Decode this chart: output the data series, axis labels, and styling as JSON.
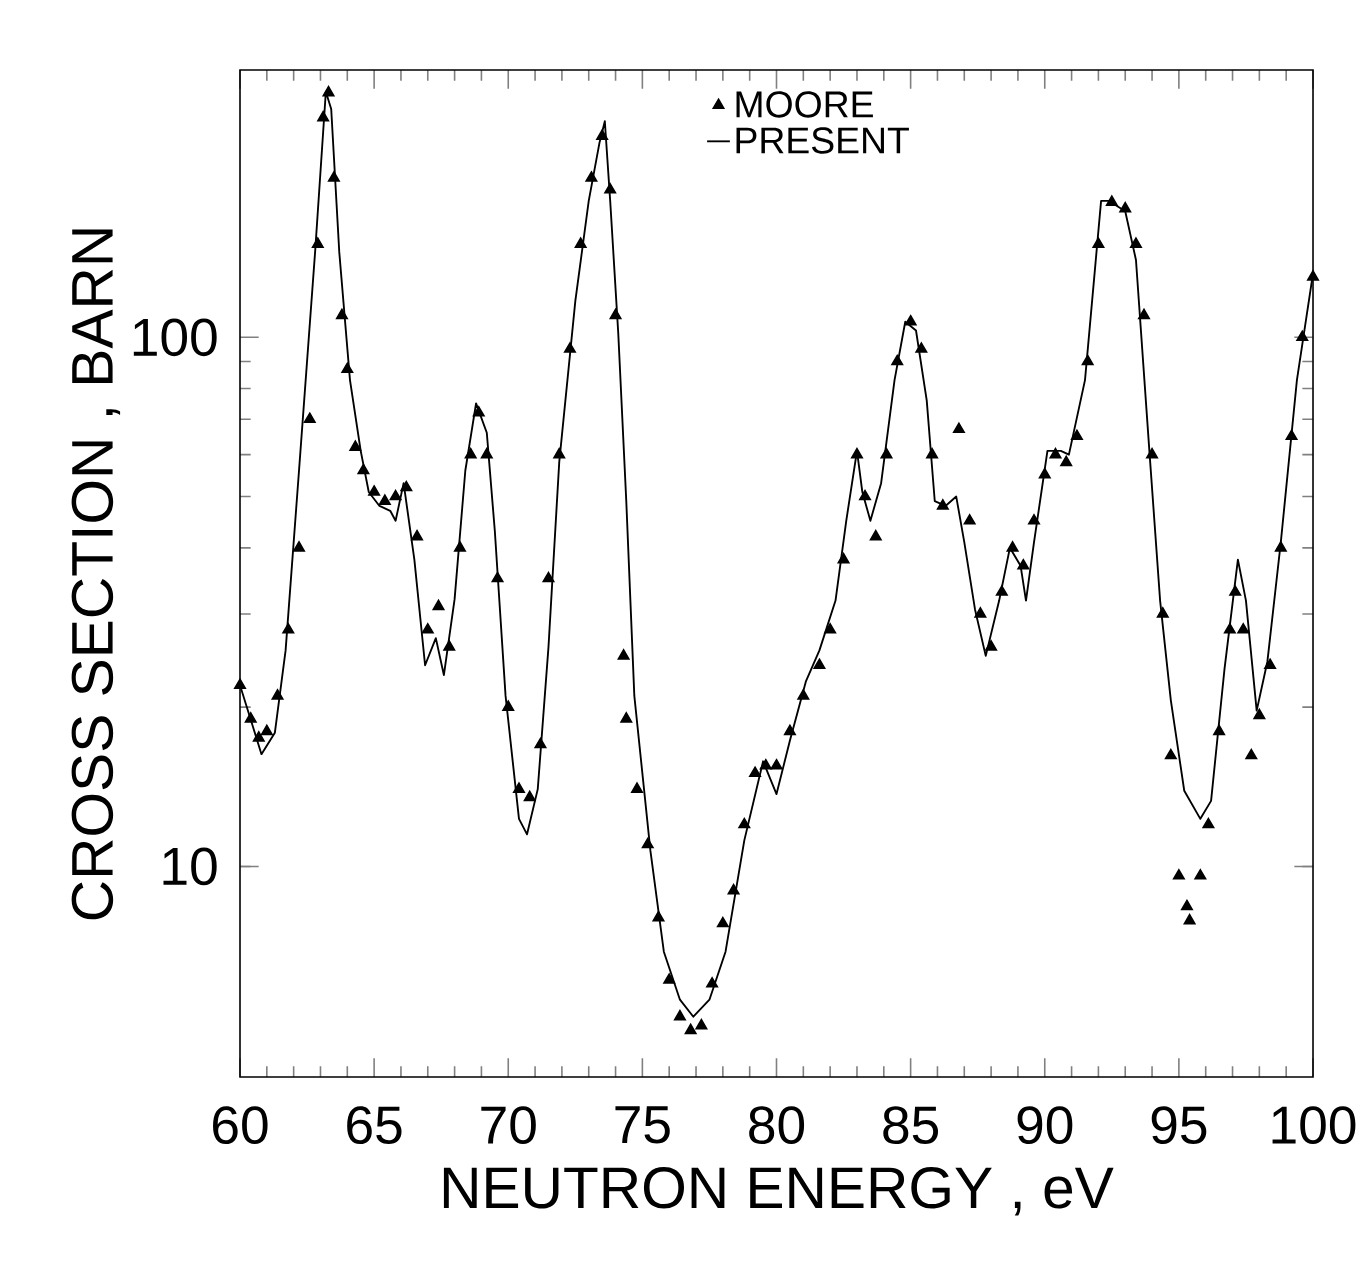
{
  "chart_data": {
    "type": "scatter",
    "xlabel": "NEUTRON  ENERGY ,  eV",
    "ylabel": "CROSS  SECTION ,  BARN",
    "xlim": [
      60,
      100
    ],
    "ylim": [
      4,
      320
    ],
    "xticks": [
      60,
      65,
      70,
      75,
      80,
      85,
      90,
      95,
      100
    ],
    "yticks": [
      10,
      100
    ],
    "log": true,
    "grid": false,
    "legend": "top",
    "series": [
      {
        "name": "MOORE",
        "marker": "triangle",
        "color": "#000000",
        "x": [
          60,
          60.4,
          60.7,
          61,
          61.4,
          61.8,
          62.2,
          62.6,
          62.9,
          63.1,
          63.3,
          63.5,
          63.8,
          64,
          64.3,
          64.6,
          65,
          65.4,
          65.8,
          66.2,
          66.6,
          67,
          67.4,
          67.8,
          68.2,
          68.6,
          68.9,
          69.2,
          69.6,
          70,
          70.4,
          70.8,
          71.2,
          71.5,
          71.9,
          72.3,
          72.7,
          73.1,
          73.5,
          73.8,
          74,
          74.3,
          74.4,
          74.8,
          75.2,
          75.6,
          76,
          76.4,
          76.8,
          77.2,
          77.6,
          78,
          78.4,
          78.8,
          79.2,
          79.6,
          80,
          80.5,
          81,
          81.6,
          82,
          82.5,
          83,
          83.3,
          83.7,
          84.1,
          84.5,
          85,
          85.4,
          85.8,
          86.2,
          86.8,
          87.2,
          87.6,
          88,
          88.4,
          88.8,
          89.2,
          89.6,
          90,
          90.4,
          90.8,
          91.2,
          91.6,
          92,
          92.5,
          93,
          93.4,
          93.7,
          94,
          94.4,
          94.7,
          95,
          95.3,
          95.4,
          95.8,
          96.1,
          96.5,
          96.9,
          97.1,
          97.4,
          97.7,
          98,
          98.4,
          98.8,
          99.2,
          99.6,
          100
        ],
        "values": [
          22,
          19,
          17.5,
          18,
          21,
          28,
          40,
          70,
          150,
          260,
          290,
          200,
          110,
          87,
          62,
          56,
          51,
          49,
          50,
          52,
          42,
          28,
          31,
          26,
          40,
          60,
          72,
          60,
          35,
          20,
          14,
          13.5,
          17,
          35,
          60,
          95,
          150,
          200,
          240,
          190,
          110,
          25,
          19,
          14,
          11,
          8,
          6.1,
          5.2,
          4.9,
          5.0,
          6,
          7.8,
          9,
          12,
          15,
          15.5,
          15.5,
          18,
          21,
          24,
          28,
          38,
          60,
          50,
          42,
          60,
          90,
          107,
          95,
          60,
          48,
          67,
          45,
          30,
          26,
          33,
          40,
          37,
          45,
          55,
          60,
          58,
          65,
          90,
          150,
          180,
          175,
          150,
          110,
          60,
          30,
          16.2,
          9.6,
          8.4,
          7.9,
          9.6,
          12,
          18,
          28,
          33,
          28,
          16.2,
          19.3,
          24,
          40,
          65,
          100,
          130
        ]
      },
      {
        "name": "PRESENT",
        "type": "line",
        "line_style": "solid",
        "color": "#000000",
        "x": [
          60,
          60.8,
          61.3,
          61.7,
          62.2,
          62.8,
          63.2,
          63.4,
          63.7,
          64.1,
          64.5,
          64.8,
          65.2,
          65.6,
          65.8,
          66.1,
          66.5,
          66.9,
          67.3,
          67.6,
          68,
          68.4,
          68.8,
          69.2,
          69.5,
          69.9,
          70.4,
          70.7,
          71.1,
          71.5,
          71.9,
          72.5,
          73,
          73.4,
          73.6,
          73.8,
          74.1,
          74.4,
          74.7,
          75.3,
          75.8,
          76.4,
          76.9,
          77.5,
          78.1,
          78.8,
          79.5,
          80,
          80.5,
          81.1,
          81.6,
          82.2,
          82.6,
          83,
          83.2,
          83.5,
          83.9,
          84.4,
          84.8,
          85.2,
          85.6,
          85.9,
          86.3,
          86.7,
          87,
          87.4,
          87.8,
          88.3,
          88.7,
          89.1,
          89.3,
          89.6,
          90.1,
          90.6,
          90.9,
          91.5,
          92.1,
          92.4,
          93,
          93.4,
          93.9,
          94.3,
          94.7,
          95.2,
          95.8,
          96.2,
          96.7,
          97.2,
          97.5,
          97.9,
          98.3,
          98.8,
          99.4,
          100
        ],
        "values": [
          22,
          16.3,
          17.9,
          25.6,
          56,
          145,
          291,
          270,
          145,
          83,
          61,
          51,
          48,
          47,
          45,
          53,
          38,
          24,
          27,
          23,
          32,
          56,
          75,
          66,
          43,
          21,
          12.3,
          11.5,
          14,
          26,
          58,
          117,
          181,
          233,
          256,
          181,
          102,
          49,
          21,
          10.7,
          6.9,
          5.6,
          5.2,
          5.6,
          6.9,
          11.2,
          15.8,
          13.7,
          17.3,
          22.4,
          25.6,
          31.8,
          45,
          61,
          51,
          45,
          53,
          83,
          107,
          103,
          76,
          49,
          48,
          50,
          41,
          30.6,
          25,
          31.8,
          40,
          37,
          31.8,
          41,
          61,
          61,
          60,
          83,
          181,
          181,
          173,
          140,
          61,
          31.8,
          20.6,
          13.9,
          12.3,
          13.3,
          23.6,
          38,
          31.8,
          19.7,
          24.4,
          41,
          83,
          132
        ]
      }
    ]
  }
}
